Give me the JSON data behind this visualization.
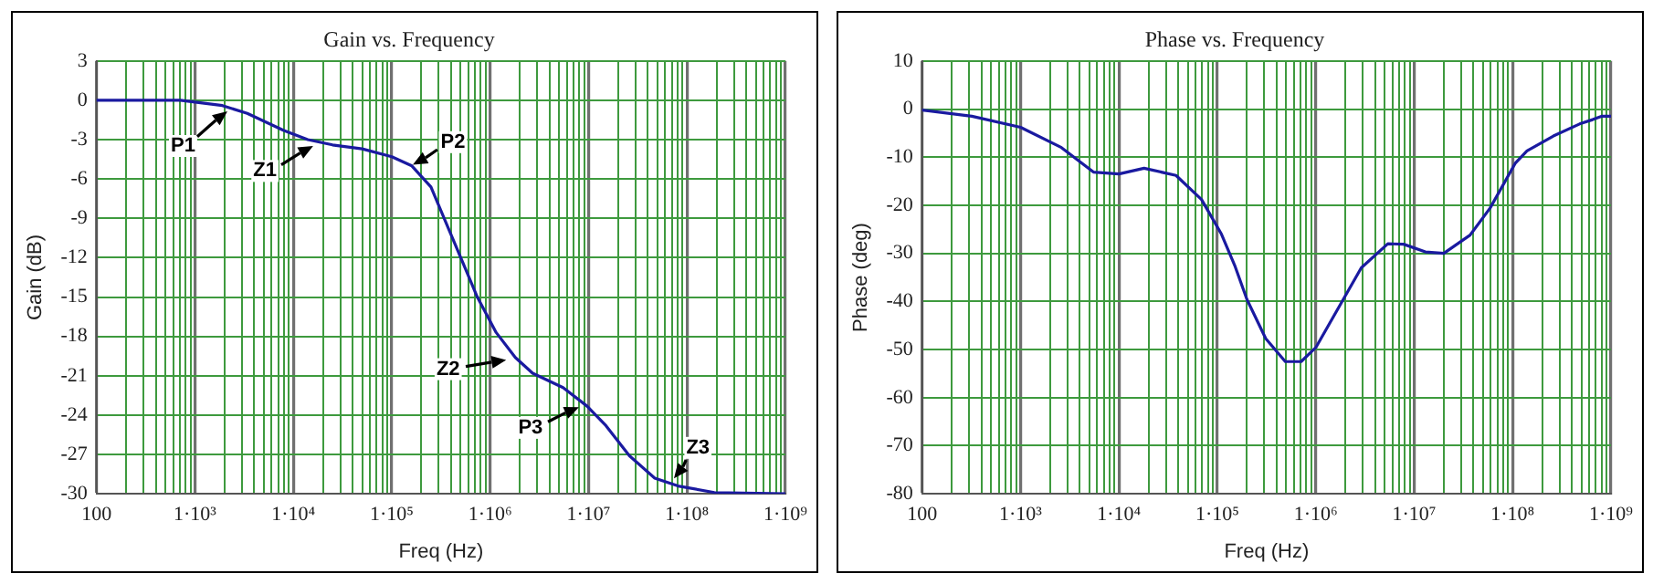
{
  "chart_data": [
    {
      "type": "line",
      "title": "Gain vs. Frequency",
      "xlabel": "Freq (Hz)",
      "ylabel": "Gain (dB)",
      "log": "x",
      "grid": true,
      "marker": "none",
      "line_style": "solid",
      "x": [
        100,
        710,
        1900,
        3400,
        8000,
        14000,
        25000,
        50000,
        100000,
        160000,
        250000,
        430000,
        740000,
        1150000,
        1800000,
        2700000,
        5500000,
        9600000,
        15000000,
        26000000,
        47000000,
        81000000,
        190000000,
        1000000000
      ],
      "series": [
        {
          "color": "#1a1aa0",
          "values": [
            0,
            0,
            -0.4,
            -1.0,
            -2.3,
            -3.0,
            -3.4,
            -3.7,
            -4.3,
            -5.0,
            -6.6,
            -10.8,
            -15,
            -17.7,
            -19.6,
            -20.8,
            -21.9,
            -23.3,
            -24.8,
            -27.1,
            -28.8,
            -29.4,
            -29.9,
            -30
          ]
        }
      ],
      "xlim": [
        100,
        1000000000
      ],
      "xticks": [
        100,
        {
          "value": 200,
          "label": null
        },
        {
          "value": 300,
          "label": null
        },
        {
          "value": 400,
          "label": null
        },
        {
          "value": 500,
          "label": null
        },
        {
          "value": 600,
          "label": null
        },
        {
          "value": 700,
          "label": null
        },
        {
          "value": 800,
          "label": null
        },
        {
          "value": 900,
          "label": null
        },
        {
          "value": 1000,
          "label": "1·10³"
        },
        {
          "value": 2000,
          "label": null
        },
        {
          "value": 3000,
          "label": null
        },
        {
          "value": 4000,
          "label": null
        },
        {
          "value": 5000,
          "label": null
        },
        {
          "value": 6000,
          "label": null
        },
        {
          "value": 7000,
          "label": null
        },
        {
          "value": 8000,
          "label": null
        },
        {
          "value": 9000,
          "label": null
        },
        {
          "value": 10000,
          "label": "1·10⁴"
        },
        {
          "value": 20000,
          "label": null
        },
        {
          "value": 30000,
          "label": null
        },
        {
          "value": 40000,
          "label": null
        },
        {
          "value": 50000,
          "label": null
        },
        {
          "value": 60000,
          "label": null
        },
        {
          "value": 70000,
          "label": null
        },
        {
          "value": 80000,
          "label": null
        },
        {
          "value": 90000,
          "label": null
        },
        {
          "value": 100000,
          "label": "1·10⁵"
        },
        {
          "value": 200000,
          "label": null
        },
        {
          "value": 300000,
          "label": null
        },
        {
          "value": 400000,
          "label": null
        },
        {
          "value": 500000,
          "label": null
        },
        {
          "value": 600000,
          "label": null
        },
        {
          "value": 700000,
          "label": null
        },
        {
          "value": 800000,
          "label": null
        },
        {
          "value": 900000,
          "label": null
        },
        {
          "value": 1000000,
          "label": "1·10⁶"
        },
        {
          "value": 2000000,
          "label": null
        },
        {
          "value": 3000000,
          "label": null
        },
        {
          "value": 4000000,
          "label": null
        },
        {
          "value": 5000000,
          "label": null
        },
        {
          "value": 6000000,
          "label": null
        },
        {
          "value": 7000000,
          "label": null
        },
        {
          "value": 8000000,
          "label": null
        },
        {
          "value": 9000000,
          "label": null
        },
        {
          "value": 10000000,
          "label": "1·10⁷"
        },
        {
          "value": 20000000,
          "label": null
        },
        {
          "value": 30000000,
          "label": null
        },
        {
          "value": 40000000,
          "label": null
        },
        {
          "value": 50000000,
          "label": null
        },
        {
          "value": 60000000,
          "label": null
        },
        {
          "value": 70000000,
          "label": null
        },
        {
          "value": 80000000,
          "label": null
        },
        {
          "value": 90000000,
          "label": null
        },
        {
          "value": 100000000,
          "label": "1·10⁸"
        },
        {
          "value": 200000000,
          "label": null
        },
        {
          "value": 300000000,
          "label": null
        },
        {
          "value": 400000000,
          "label": null
        },
        {
          "value": 500000000,
          "label": null
        },
        {
          "value": 600000000,
          "label": null
        },
        {
          "value": 700000000,
          "label": null
        },
        {
          "value": 800000000,
          "label": null
        },
        {
          "value": 900000000,
          "label": null
        },
        {
          "value": 1000000000,
          "label": "1·10⁹"
        }
      ],
      "ylim": [
        -30,
        3
      ],
      "yticks": [
        -30,
        -27,
        -24,
        -21,
        -18,
        -15,
        -12,
        -9,
        -6,
        -3,
        0,
        3
      ],
      "annotations": [
        {
          "text": "P1",
          "x": 2300,
          "y": -0.7
        },
        {
          "text": "Z1",
          "x": 17000,
          "y": -3.3
        },
        {
          "text": "P2",
          "x": 150000,
          "y": -5
        },
        {
          "text": "Z2",
          "x": 1600000,
          "y": -19.8
        },
        {
          "text": "P3",
          "x": 8500000,
          "y": -23.3
        },
        {
          "text": "Z3",
          "x": 71000000,
          "y": -29
        }
      ]
    },
    {
      "type": "line",
      "title": "Phase vs. Frequency",
      "xlabel": "Freq (Hz)",
      "ylabel": "Phase (deg)",
      "log": "x",
      "grid": true,
      "marker": "none",
      "line_style": "solid",
      "x": [
        100,
        320,
        1000,
        2600,
        5500,
        10000,
        18000,
        38000,
        69000,
        110000,
        150000,
        200000,
        310000,
        490000,
        710000,
        1000000,
        1900000,
        2900000,
        5400000,
        7800000,
        13000000,
        20000000,
        37000000,
        59000000,
        107000000,
        140000000,
        260000000,
        480000000,
        650000000,
        800000000,
        1000000000
      ],
      "series": [
        {
          "color": "#1a1aa0",
          "values": [
            -0.2,
            -1.5,
            -3.8,
            -8,
            -13.1,
            -13.5,
            -12.3,
            -13.8,
            -18.8,
            -26,
            -32.5,
            -39.6,
            -47.7,
            -52.5,
            -52.5,
            -49.6,
            -39.6,
            -33,
            -28,
            -28.1,
            -29.7,
            -30,
            -26.2,
            -20.6,
            -11.2,
            -8.7,
            -5.6,
            -3.1,
            -2.2,
            -1.5,
            -1.5
          ]
        }
      ],
      "xlim": [
        100,
        1000000000
      ],
      "xticks": [
        100,
        {
          "value": 200,
          "label": null
        },
        {
          "value": 300,
          "label": null
        },
        {
          "value": 400,
          "label": null
        },
        {
          "value": 500,
          "label": null
        },
        {
          "value": 600,
          "label": null
        },
        {
          "value": 700,
          "label": null
        },
        {
          "value": 800,
          "label": null
        },
        {
          "value": 900,
          "label": null
        },
        {
          "value": 1000,
          "label": "1·10³"
        },
        {
          "value": 2000,
          "label": null
        },
        {
          "value": 3000,
          "label": null
        },
        {
          "value": 4000,
          "label": null
        },
        {
          "value": 5000,
          "label": null
        },
        {
          "value": 6000,
          "label": null
        },
        {
          "value": 7000,
          "label": null
        },
        {
          "value": 8000,
          "label": null
        },
        {
          "value": 9000,
          "label": null
        },
        {
          "value": 10000,
          "label": "1·10⁴"
        },
        {
          "value": 20000,
          "label": null
        },
        {
          "value": 30000,
          "label": null
        },
        {
          "value": 40000,
          "label": null
        },
        {
          "value": 50000,
          "label": null
        },
        {
          "value": 60000,
          "label": null
        },
        {
          "value": 70000,
          "label": null
        },
        {
          "value": 80000,
          "label": null
        },
        {
          "value": 90000,
          "label": null
        },
        {
          "value": 100000,
          "label": "1·10⁵"
        },
        {
          "value": 200000,
          "label": null
        },
        {
          "value": 300000,
          "label": null
        },
        {
          "value": 400000,
          "label": null
        },
        {
          "value": 500000,
          "label": null
        },
        {
          "value": 600000,
          "label": null
        },
        {
          "value": 700000,
          "label": null
        },
        {
          "value": 800000,
          "label": null
        },
        {
          "value": 900000,
          "label": null
        },
        {
          "value": 1000000,
          "label": "1·10⁶"
        },
        {
          "value": 2000000,
          "label": null
        },
        {
          "value": 3000000,
          "label": null
        },
        {
          "value": 4000000,
          "label": null
        },
        {
          "value": 5000000,
          "label": null
        },
        {
          "value": 6000000,
          "label": null
        },
        {
          "value": 7000000,
          "label": null
        },
        {
          "value": 8000000,
          "label": null
        },
        {
          "value": 9000000,
          "label": null
        },
        {
          "value": 10000000,
          "label": "1·10⁷"
        },
        {
          "value": 20000000,
          "label": null
        },
        {
          "value": 30000000,
          "label": null
        },
        {
          "value": 40000000,
          "label": null
        },
        {
          "value": 50000000,
          "label": null
        },
        {
          "value": 60000000,
          "label": null
        },
        {
          "value": 70000000,
          "label": null
        },
        {
          "value": 80000000,
          "label": null
        },
        {
          "value": 90000000,
          "label": null
        },
        {
          "value": 100000000,
          "label": "1·10⁸"
        },
        {
          "value": 200000000,
          "label": null
        },
        {
          "value": 300000000,
          "label": null
        },
        {
          "value": 400000000,
          "label": null
        },
        {
          "value": 500000000,
          "label": null
        },
        {
          "value": 600000000,
          "label": null
        },
        {
          "value": 700000000,
          "label": null
        },
        {
          "value": 800000000,
          "label": null
        },
        {
          "value": 900000000,
          "label": null
        },
        {
          "value": 1000000000,
          "label": "1·10⁹"
        }
      ],
      "ylim": [
        -80,
        10
      ],
      "yticks": [
        -80,
        -70,
        -60,
        -50,
        -40,
        -30,
        -20,
        -10,
        0,
        10
      ]
    }
  ]
}
